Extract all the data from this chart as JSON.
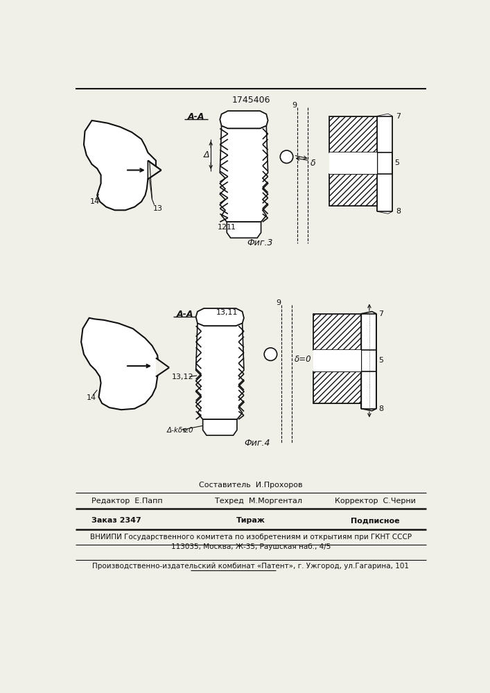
{
  "title": "1745406",
  "fig3_label": "Фиг.3",
  "fig4_label": "Фиг.4",
  "aa_label": "A-A",
  "footer": {
    "line1_left": "Редактор  Е.Папп",
    "line1_center_top": "Составитель  И.Прохоров",
    "line1_center": "Техред  М.Моргентал",
    "line1_right": "Корректор  С.Черни",
    "line2_left": "Заказ 2347",
    "line2_center": "Тираж",
    "line2_right": "Подписное",
    "line3": "ВНИИПИ Государственного комитета по изобретениям и открытиям при ГКНТ СССР",
    "line4": "113035, Москва, Ж-35, Раушская наб., 4/5",
    "line5": "Производственно-издательский комбинат «Патент», г. Ужгород, ул.Гагарина, 101"
  },
  "bg_color": "#f0efe8",
  "line_color": "#111111"
}
